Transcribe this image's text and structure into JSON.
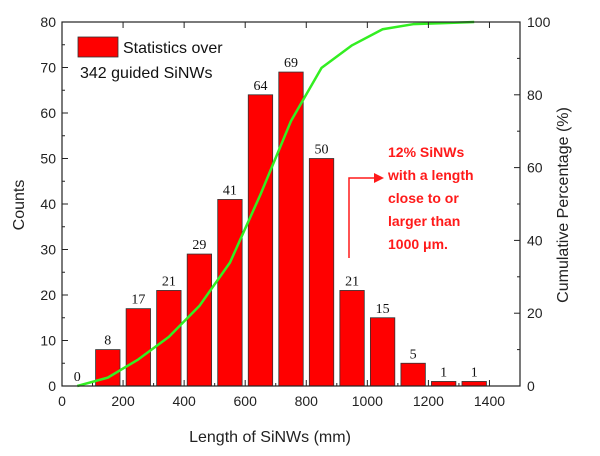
{
  "chart_data": {
    "type": "bar",
    "xlabel": "Length of SiNWs (mm)",
    "ylabel": "Counts",
    "y2label": "Cumulative Percentage (%)",
    "xlim": [
      0,
      1500
    ],
    "ylim": [
      0,
      80
    ],
    "y2lim": [
      0,
      100
    ],
    "x_ticks": [
      "0",
      "200",
      "400",
      "600",
      "800",
      "1000",
      "1200",
      "1400"
    ],
    "y_ticks": [
      "0",
      "10",
      "20",
      "30",
      "40",
      "50",
      "60",
      "70",
      "80"
    ],
    "y2_ticks": [
      "0",
      "20",
      "40",
      "60",
      "80",
      "100"
    ],
    "bars": {
      "x": [
        50,
        150,
        250,
        350,
        450,
        550,
        650,
        750,
        850,
        950,
        1050,
        1150,
        1250,
        1350
      ],
      "values": [
        0,
        8,
        17,
        21,
        29,
        41,
        64,
        69,
        50,
        21,
        15,
        5,
        1,
        1
      ],
      "labels": [
        "0",
        "8",
        "17",
        "21",
        "29",
        "41",
        "64",
        "69",
        "50",
        "21",
        "15",
        "5",
        "1",
        "1"
      ],
      "width": 80,
      "color": "#ff0000"
    },
    "cumulative": {
      "x": [
        50,
        150,
        250,
        350,
        450,
        550,
        650,
        750,
        850,
        950,
        1050,
        1150,
        1250,
        1350
      ],
      "values": [
        0,
        2.3,
        7.3,
        13.5,
        22.0,
        33.9,
        52.6,
        72.8,
        87.4,
        93.6,
        98.0,
        99.4,
        99.7,
        100
      ],
      "color": "#33ee22"
    },
    "legend": {
      "line1": "Statistics over",
      "line2": "342 guided SiNWs",
      "placement": "top-left"
    },
    "annotation": {
      "lines": [
        "12% SiNWs",
        "with a length",
        "close to or",
        "larger than",
        "1000 μm."
      ],
      "color": "#ff1a1a"
    }
  }
}
